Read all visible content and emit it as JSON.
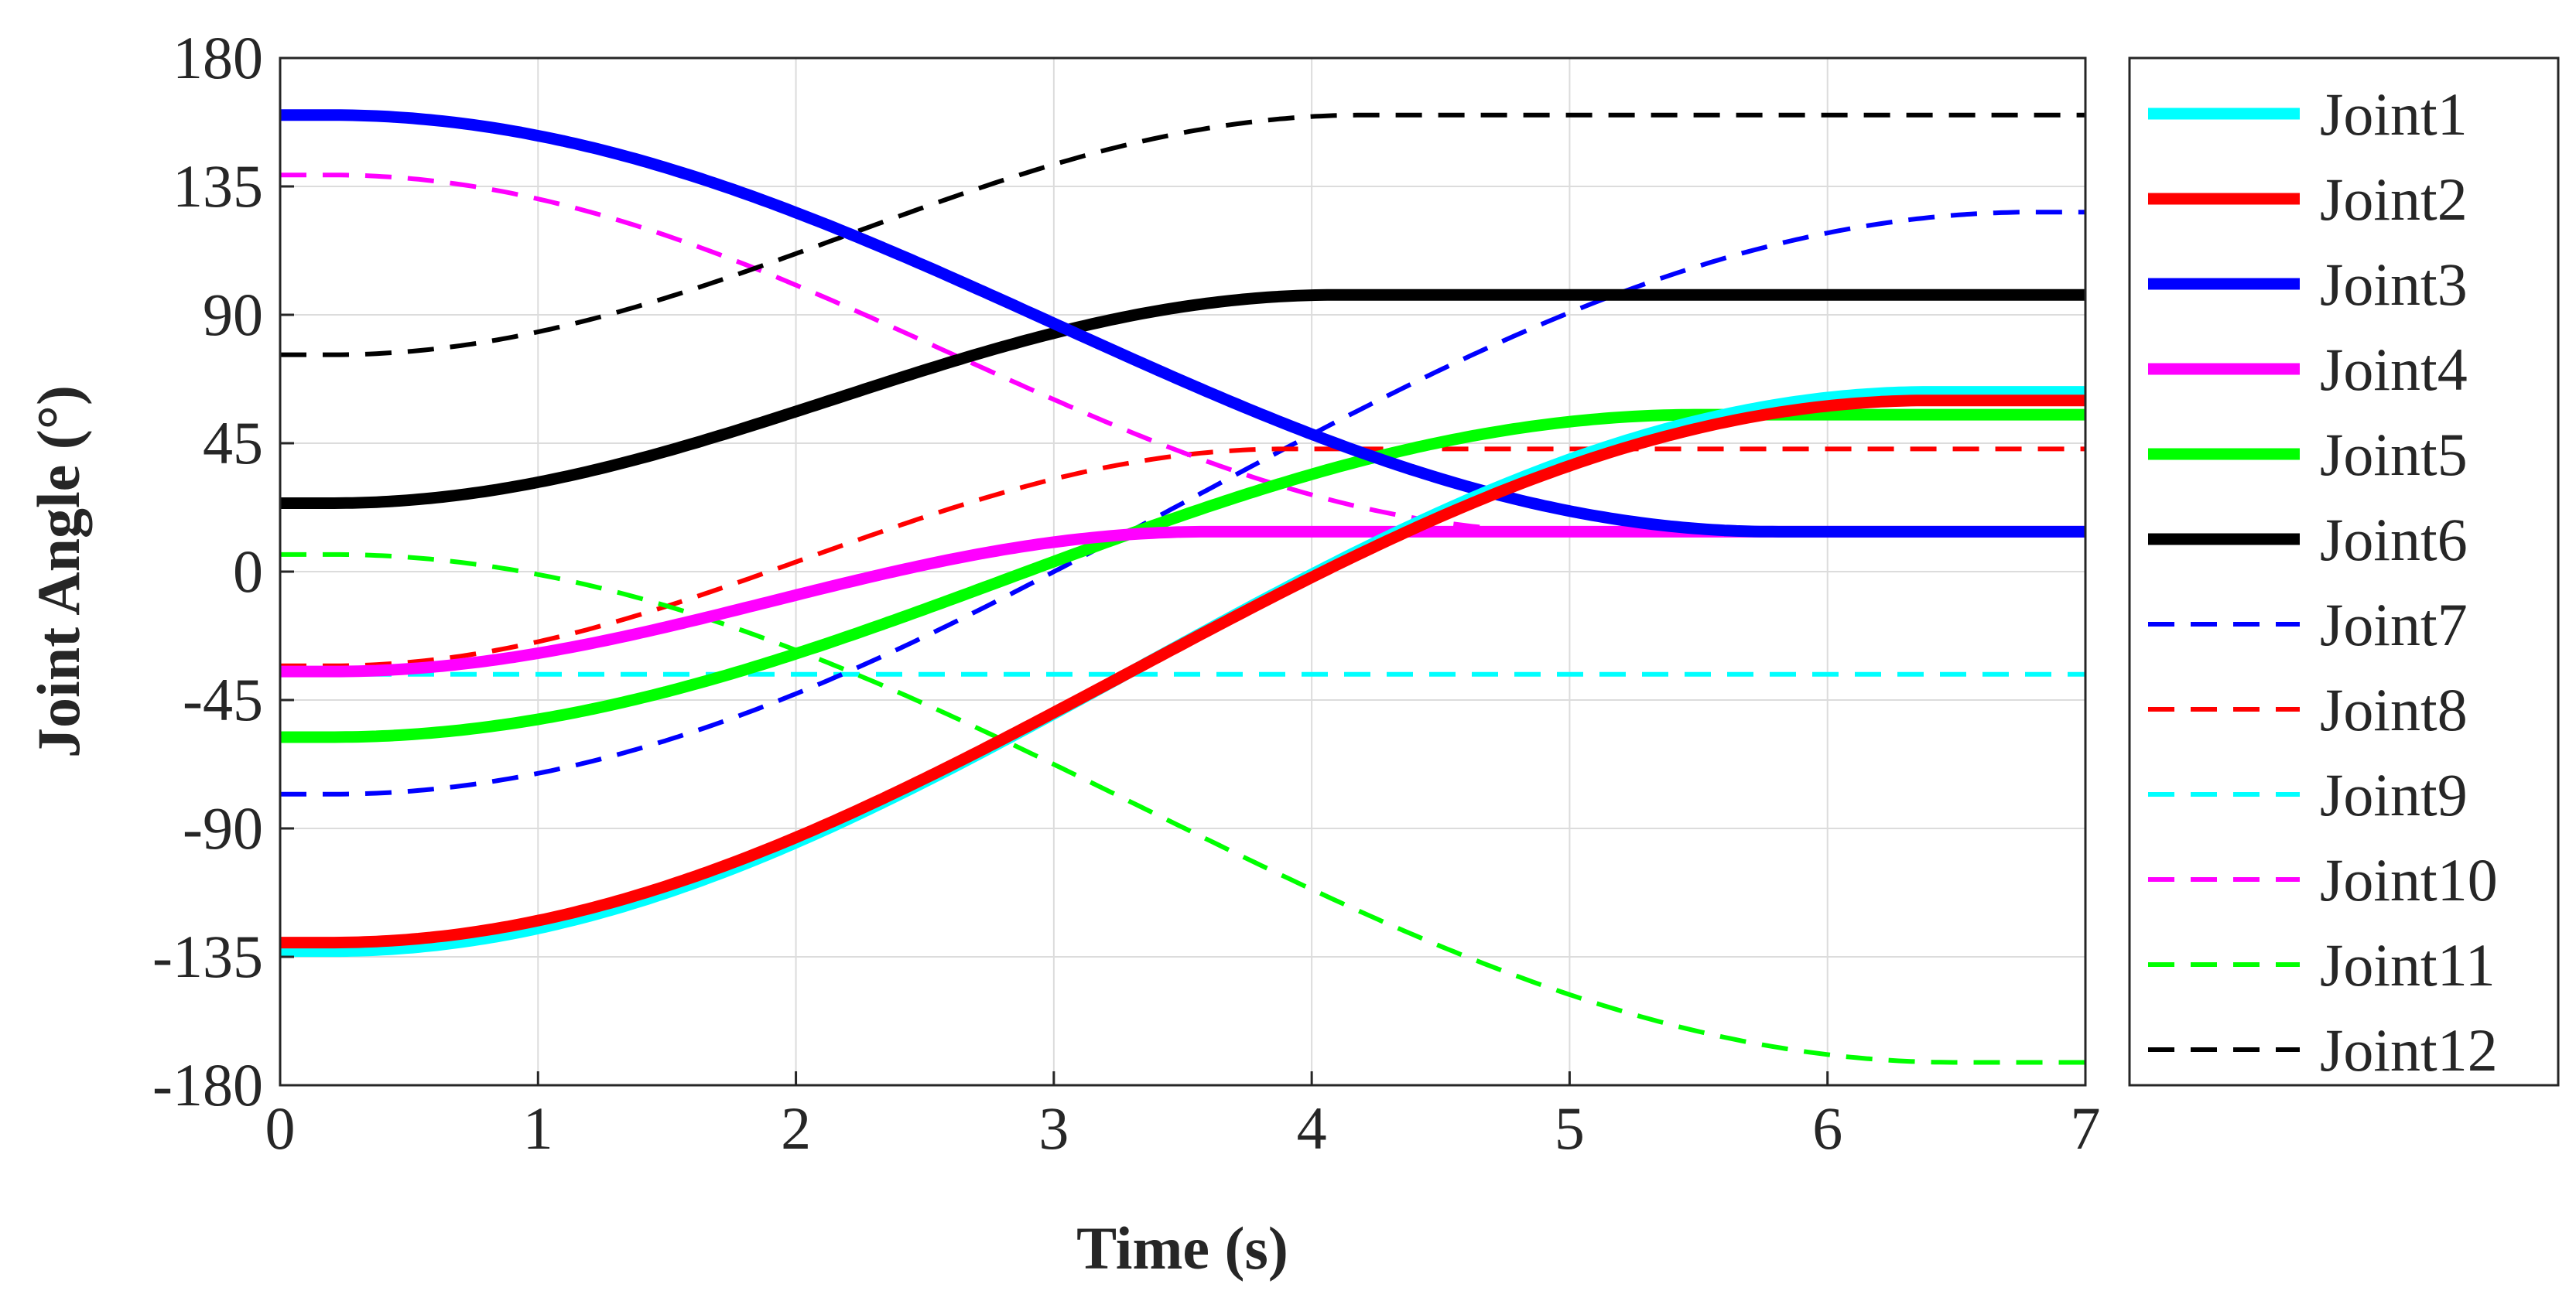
{
  "chart_data": {
    "type": "line",
    "title": "",
    "xlabel": "Time (s)",
    "ylabel": "Joint Angle (°)",
    "xlim": [
      0,
      7
    ],
    "ylim": [
      -180,
      180
    ],
    "xticks": [
      "0",
      "1",
      "2",
      "3",
      "4",
      "5",
      "6",
      "7"
    ],
    "yticks": [
      "180",
      "135",
      "90",
      "45",
      "0",
      "-45",
      "-90",
      "-135",
      "-180"
    ],
    "grid": true,
    "legend_position": "outside-right",
    "series": [
      {
        "name": "Joint1",
        "style": "solid",
        "color": "#00FFFF",
        "start": -133,
        "end": 63,
        "t0": 0.2,
        "t1": 6.4
      },
      {
        "name": "Joint2",
        "style": "solid",
        "color": "#FF0000",
        "start": -130,
        "end": 60,
        "t0": 0.2,
        "t1": 6.4
      },
      {
        "name": "Joint3",
        "style": "solid",
        "color": "#0000FF",
        "start": 160,
        "end": 14,
        "t0": 0.2,
        "t1": 5.8
      },
      {
        "name": "Joint4",
        "style": "solid",
        "color": "#FF00FF",
        "start": -35,
        "end": 14,
        "t0": 0.2,
        "t1": 3.6
      },
      {
        "name": "Joint5",
        "style": "solid",
        "color": "#00FF00",
        "start": -58,
        "end": 55,
        "t0": 0.2,
        "t1": 5.5
      },
      {
        "name": "Joint6",
        "style": "solid",
        "color": "#000000",
        "start": 24,
        "end": 97,
        "t0": 0.2,
        "t1": 4.1
      },
      {
        "name": "Joint7",
        "style": "dashed",
        "color": "#0000FF",
        "start": -78,
        "end": 126,
        "t0": 0.2,
        "t1": 6.8
      },
      {
        "name": "Joint8",
        "style": "dashed",
        "color": "#FF0000",
        "start": -33,
        "end": 43,
        "t0": 0.2,
        "t1": 3.9
      },
      {
        "name": "Joint9",
        "style": "dashed",
        "color": "#00FFFF",
        "start": -36,
        "end": -36,
        "t0": 0.2,
        "t1": 7.0
      },
      {
        "name": "Joint10",
        "style": "dashed",
        "color": "#FF00FF",
        "start": 139,
        "end": 14,
        "t0": 0.2,
        "t1": 5.0
      },
      {
        "name": "Joint11",
        "style": "dashed",
        "color": "#00FF00",
        "start": 6,
        "end": -172,
        "t0": 0.2,
        "t1": 6.5
      },
      {
        "name": "Joint12",
        "style": "dashed",
        "color": "#000000",
        "start": 76,
        "end": 160,
        "t0": 0.2,
        "t1": 4.2
      }
    ]
  }
}
